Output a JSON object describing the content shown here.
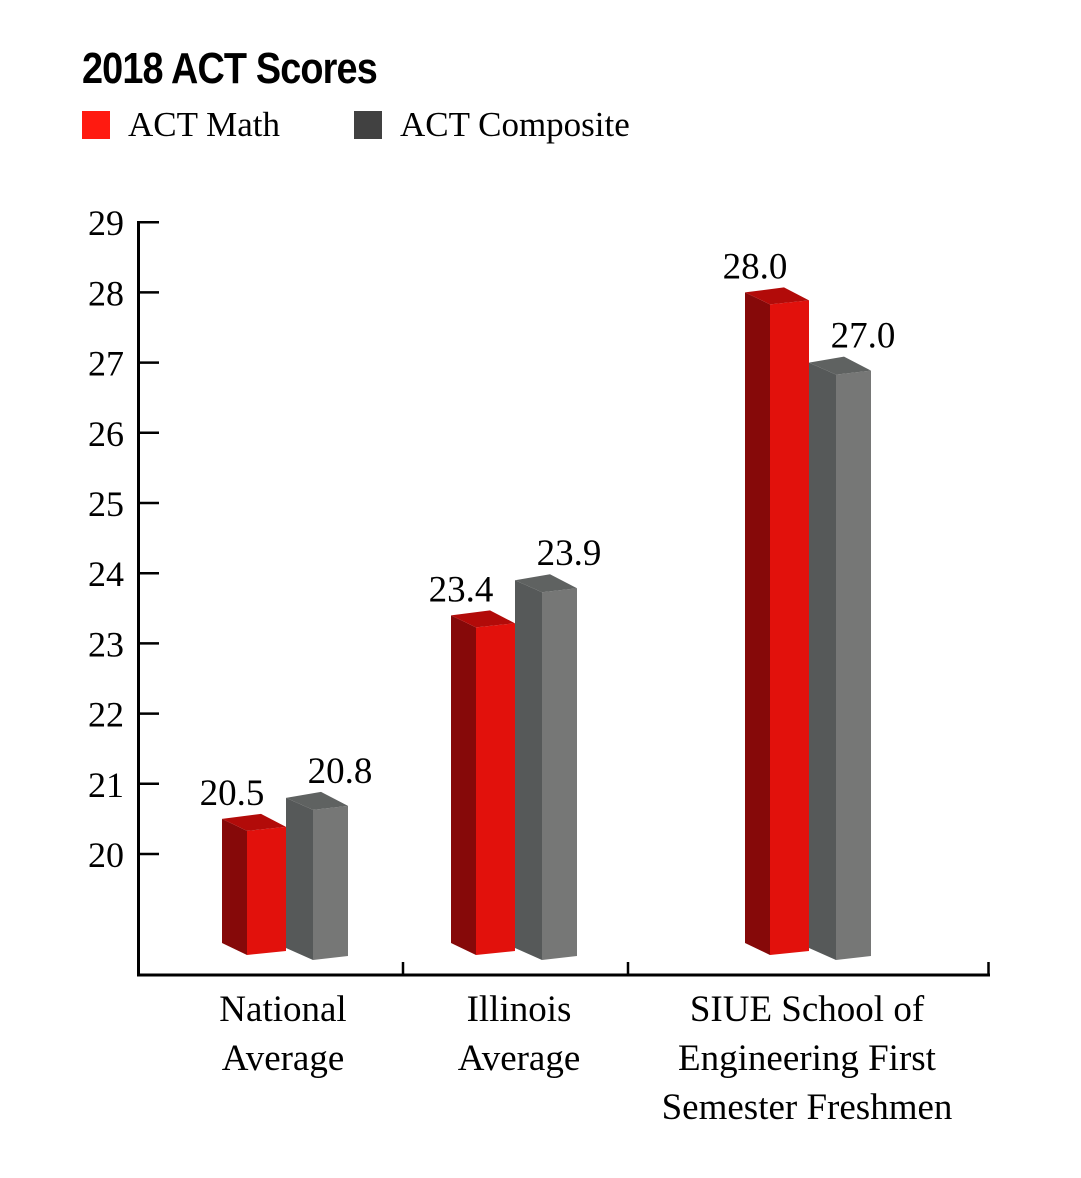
{
  "chart_data": {
    "type": "bar",
    "style": "3d-grouped",
    "title": "2018 ACT Scores",
    "xlabel": "",
    "ylabel": "",
    "categories": [
      [
        "National",
        "Average"
      ],
      [
        "Illinois",
        "Average"
      ],
      [
        "SIUE School of",
        "Engineering First",
        "Semester Freshmen"
      ]
    ],
    "series": [
      {
        "name": "ACT Math",
        "color": "#e2110c",
        "side_color": "#860909",
        "top_color": "#b20b09",
        "legend_color": "#ff1a10",
        "values": [
          20.5,
          23.4,
          28.0
        ],
        "labels": [
          "20.5",
          "23.4",
          "28.0"
        ]
      },
      {
        "name": "ACT Composite",
        "color": "#767776",
        "side_color": "#565959",
        "top_color": "#5f6261",
        "legend_color": "#414141",
        "values": [
          20.8,
          23.9,
          27.0
        ],
        "labels": [
          "20.8",
          "23.9",
          "27.0"
        ]
      }
    ],
    "yticks": [
      "20",
      "21",
      "22",
      "23",
      "24",
      "25",
      "26",
      "27",
      "28",
      "29"
    ],
    "ylim": [
      18.3,
      29
    ],
    "grid": false,
    "legend_position": "top-left"
  }
}
